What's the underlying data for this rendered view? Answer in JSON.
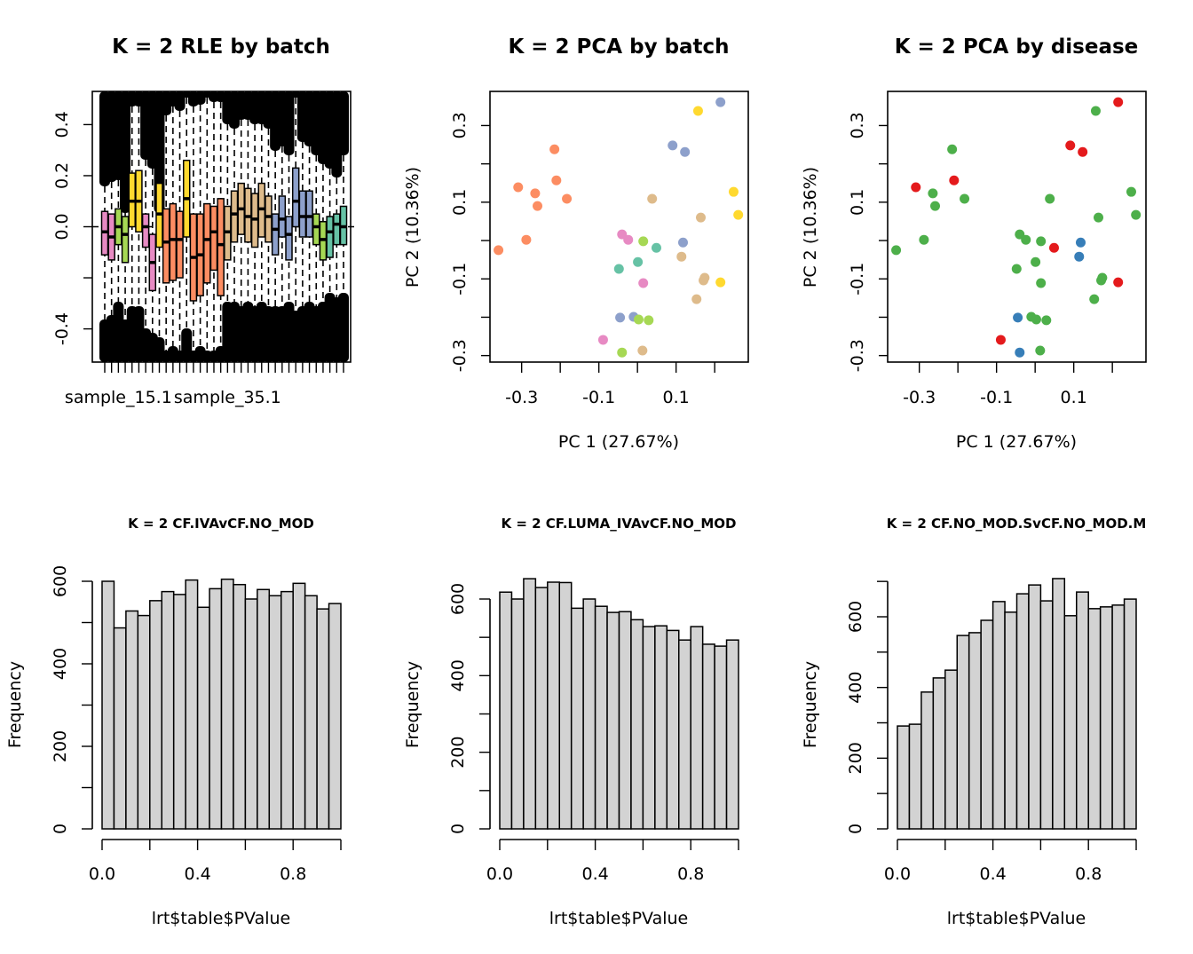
{
  "chart_data": [
    {
      "type": "boxplot",
      "title": "K = 2 RLE by batch",
      "xlabel": "",
      "ylabel": "",
      "ylim": [
        -0.53,
        0.53
      ],
      "yticks": [
        -0.4,
        -0.2,
        0.0,
        0.2,
        0.4
      ],
      "ytick_labels": [
        "-0.4",
        "",
        "0.0",
        "0.2",
        "0.4"
      ],
      "xtick_labels_shown": [
        "sample_15.1",
        "sample_35.1"
      ],
      "reference_line": 0.0,
      "boxes": [
        {
          "color": "#E78AC3",
          "q1": -0.11,
          "median": -0.02,
          "q3": 0.06
        },
        {
          "color": "#E78AC3",
          "q1": -0.13,
          "median": -0.04,
          "q3": 0.05
        },
        {
          "color": "#A6D854",
          "q1": -0.07,
          "median": 0.0,
          "q3": 0.07
        },
        {
          "color": "#A6D854",
          "q1": -0.14,
          "median": -0.03,
          "q3": 0.04
        },
        {
          "color": "#FFD92F",
          "q1": 0.0,
          "median": 0.1,
          "q3": 0.21
        },
        {
          "color": "#FFD92F",
          "q1": -0.02,
          "median": 0.1,
          "q3": 0.22
        },
        {
          "color": "#E78AC3",
          "q1": -0.08,
          "median": 0.0,
          "q3": 0.05
        },
        {
          "color": "#E78AC3",
          "q1": -0.25,
          "median": -0.14,
          "q3": -0.03
        },
        {
          "color": "#FFD92F",
          "q1": -0.08,
          "median": 0.05,
          "q3": 0.17
        },
        {
          "color": "#FC8D62",
          "q1": -0.22,
          "median": -0.06,
          "q3": 0.07
        },
        {
          "color": "#FC8D62",
          "q1": -0.21,
          "median": -0.05,
          "q3": 0.09
        },
        {
          "color": "#FC8D62",
          "q1": -0.2,
          "median": -0.05,
          "q3": 0.06
        },
        {
          "color": "#FFD92F",
          "q1": -0.04,
          "median": 0.11,
          "q3": 0.26
        },
        {
          "color": "#FC8D62",
          "q1": -0.29,
          "median": -0.12,
          "q3": 0.05
        },
        {
          "color": "#FC8D62",
          "q1": -0.27,
          "median": -0.11,
          "q3": 0.05
        },
        {
          "color": "#FC8D62",
          "q1": -0.22,
          "median": -0.05,
          "q3": 0.09
        },
        {
          "color": "#FC8D62",
          "q1": -0.17,
          "median": -0.02,
          "q3": 0.08
        },
        {
          "color": "#FC8D62",
          "q1": -0.27,
          "median": -0.07,
          "q3": 0.11
        },
        {
          "color": "#DEBB8B",
          "q1": -0.13,
          "median": -0.02,
          "q3": 0.08
        },
        {
          "color": "#DEBB8B",
          "q1": -0.06,
          "median": 0.05,
          "q3": 0.14
        },
        {
          "color": "#DEBB8B",
          "q1": -0.03,
          "median": 0.07,
          "q3": 0.17
        },
        {
          "color": "#DEBB8B",
          "q1": -0.06,
          "median": 0.04,
          "q3": 0.15
        },
        {
          "color": "#DEBB8B",
          "q1": -0.08,
          "median": 0.03,
          "q3": 0.13
        },
        {
          "color": "#DEBB8B",
          "q1": -0.04,
          "median": 0.07,
          "q3": 0.17
        },
        {
          "color": "#DEBB8B",
          "q1": -0.06,
          "median": 0.04,
          "q3": 0.12
        },
        {
          "color": "#8DA0CB",
          "q1": -0.11,
          "median": -0.01,
          "q3": 0.05
        },
        {
          "color": "#8DA0CB",
          "q1": -0.04,
          "median": 0.03,
          "q3": 0.12
        },
        {
          "color": "#8DA0CB",
          "q1": -0.13,
          "median": -0.03,
          "q3": 0.04
        },
        {
          "color": "#8DA0CB",
          "q1": 0.0,
          "median": 0.1,
          "q3": 0.23
        },
        {
          "color": "#8DA0CB",
          "q1": -0.04,
          "median": 0.04,
          "q3": 0.14
        },
        {
          "color": "#8DA0CB",
          "q1": -0.04,
          "median": 0.04,
          "q3": 0.14
        },
        {
          "color": "#A6D854",
          "q1": -0.07,
          "median": 0.0,
          "q3": 0.05
        },
        {
          "color": "#A6D854",
          "q1": -0.13,
          "median": -0.05,
          "q3": 0.02
        },
        {
          "color": "#66C2A5",
          "q1": -0.12,
          "median": -0.02,
          "q3": 0.04
        },
        {
          "color": "#66C2A5",
          "q1": -0.07,
          "median": 0.01,
          "q3": 0.05
        },
        {
          "color": "#66C2A5",
          "q1": -0.07,
          "median": 0.0,
          "q3": 0.08
        }
      ]
    },
    {
      "type": "scatter",
      "title": "K = 2 PCA by batch",
      "xlabel": "PC 1 (27.67%)",
      "ylabel": "PC 2 (10.36%)",
      "xlim": [
        -0.382,
        0.287
      ],
      "ylim": [
        -0.317,
        0.389
      ],
      "xticks": [
        -0.3,
        -0.2,
        -0.1,
        0.0,
        0.1,
        0.2
      ],
      "xtick_labels": [
        "-0.3",
        "",
        "-0.1",
        "",
        "0.1",
        ""
      ],
      "yticks": [
        -0.3,
        -0.2,
        -0.1,
        0.0,
        0.1,
        0.2,
        0.3
      ],
      "ytick_labels": [
        "-0.3",
        "",
        "-0.1",
        "",
        "0.1",
        "",
        "0.3"
      ],
      "points": [
        {
          "x": -0.215,
          "y": 0.238,
          "color": "#FC8D62"
        },
        {
          "x": -0.21,
          "y": 0.157,
          "color": "#FC8D62"
        },
        {
          "x": -0.309,
          "y": 0.139,
          "color": "#FC8D62"
        },
        {
          "x": -0.265,
          "y": 0.123,
          "color": "#FC8D62"
        },
        {
          "x": -0.259,
          "y": 0.09,
          "color": "#FC8D62"
        },
        {
          "x": -0.183,
          "y": 0.109,
          "color": "#FC8D62"
        },
        {
          "x": -0.288,
          "y": 0.002,
          "color": "#FC8D62"
        },
        {
          "x": -0.36,
          "y": -0.025,
          "color": "#FC8D62"
        },
        {
          "x": 0.215,
          "y": 0.361,
          "color": "#8DA0CB"
        },
        {
          "x": 0.091,
          "y": 0.248,
          "color": "#8DA0CB"
        },
        {
          "x": 0.123,
          "y": 0.231,
          "color": "#8DA0CB"
        },
        {
          "x": 0.118,
          "y": -0.005,
          "color": "#8DA0CB"
        },
        {
          "x": -0.045,
          "y": -0.201,
          "color": "#8DA0CB"
        },
        {
          "x": -0.01,
          "y": -0.199,
          "color": "#8DA0CB"
        },
        {
          "x": 0.157,
          "y": 0.338,
          "color": "#FFD92F"
        },
        {
          "x": 0.249,
          "y": 0.127,
          "color": "#FFD92F"
        },
        {
          "x": 0.261,
          "y": 0.067,
          "color": "#FFD92F"
        },
        {
          "x": 0.215,
          "y": -0.109,
          "color": "#FFD92F"
        },
        {
          "x": 0.038,
          "y": 0.109,
          "color": "#DEBB8B"
        },
        {
          "x": 0.164,
          "y": 0.06,
          "color": "#DEBB8B"
        },
        {
          "x": 0.114,
          "y": -0.042,
          "color": "#DEBB8B"
        },
        {
          "x": 0.174,
          "y": -0.097,
          "color": "#DEBB8B"
        },
        {
          "x": 0.171,
          "y": -0.104,
          "color": "#DEBB8B"
        },
        {
          "x": 0.153,
          "y": -0.153,
          "color": "#DEBB8B"
        },
        {
          "x": 0.013,
          "y": -0.287,
          "color": "#DEBB8B"
        },
        {
          "x": -0.04,
          "y": 0.016,
          "color": "#E78AC3"
        },
        {
          "x": -0.024,
          "y": 0.002,
          "color": "#E78AC3"
        },
        {
          "x": 0.015,
          "y": -0.111,
          "color": "#E78AC3"
        },
        {
          "x": -0.089,
          "y": -0.259,
          "color": "#E78AC3"
        },
        {
          "x": 0.015,
          "y": -0.002,
          "color": "#A6D854"
        },
        {
          "x": 0.003,
          "y": -0.206,
          "color": "#A6D854"
        },
        {
          "x": 0.029,
          "y": -0.208,
          "color": "#A6D854"
        },
        {
          "x": -0.04,
          "y": -0.292,
          "color": "#A6D854"
        },
        {
          "x": 0.049,
          "y": -0.019,
          "color": "#66C2A5"
        },
        {
          "x": 0.001,
          "y": -0.056,
          "color": "#66C2A5"
        },
        {
          "x": -0.048,
          "y": -0.074,
          "color": "#66C2A5"
        }
      ]
    },
    {
      "type": "scatter",
      "title": "K = 2 PCA by disease",
      "xlabel": "PC 1 (27.67%)",
      "ylabel": "PC 2 (10.36%)",
      "xlim": [
        -0.382,
        0.287
      ],
      "ylim": [
        -0.317,
        0.389
      ],
      "xticks": [
        -0.3,
        -0.2,
        -0.1,
        0.0,
        0.1,
        0.2
      ],
      "xtick_labels": [
        "-0.3",
        "",
        "-0.1",
        "",
        "0.1",
        ""
      ],
      "yticks": [
        -0.3,
        -0.2,
        -0.1,
        0.0,
        0.1,
        0.2,
        0.3
      ],
      "ytick_labels": [
        "-0.3",
        "",
        "-0.1",
        "",
        "0.1",
        "",
        "0.3"
      ],
      "points": [
        {
          "x": -0.215,
          "y": 0.238,
          "color": "#4DAF4A"
        },
        {
          "x": -0.21,
          "y": 0.157,
          "color": "#E41A1C"
        },
        {
          "x": -0.309,
          "y": 0.139,
          "color": "#E41A1C"
        },
        {
          "x": -0.265,
          "y": 0.123,
          "color": "#4DAF4A"
        },
        {
          "x": -0.259,
          "y": 0.09,
          "color": "#4DAF4A"
        },
        {
          "x": -0.183,
          "y": 0.109,
          "color": "#4DAF4A"
        },
        {
          "x": -0.288,
          "y": 0.002,
          "color": "#4DAF4A"
        },
        {
          "x": -0.36,
          "y": -0.025,
          "color": "#4DAF4A"
        },
        {
          "x": 0.215,
          "y": 0.361,
          "color": "#E41A1C"
        },
        {
          "x": 0.091,
          "y": 0.248,
          "color": "#E41A1C"
        },
        {
          "x": 0.123,
          "y": 0.231,
          "color": "#E41A1C"
        },
        {
          "x": 0.118,
          "y": -0.005,
          "color": "#377EB8"
        },
        {
          "x": -0.045,
          "y": -0.201,
          "color": "#377EB8"
        },
        {
          "x": -0.01,
          "y": -0.199,
          "color": "#4DAF4A"
        },
        {
          "x": 0.157,
          "y": 0.338,
          "color": "#4DAF4A"
        },
        {
          "x": 0.249,
          "y": 0.127,
          "color": "#4DAF4A"
        },
        {
          "x": 0.261,
          "y": 0.067,
          "color": "#4DAF4A"
        },
        {
          "x": 0.215,
          "y": -0.109,
          "color": "#E41A1C"
        },
        {
          "x": 0.038,
          "y": 0.109,
          "color": "#4DAF4A"
        },
        {
          "x": 0.164,
          "y": 0.06,
          "color": "#4DAF4A"
        },
        {
          "x": 0.114,
          "y": -0.042,
          "color": "#377EB8"
        },
        {
          "x": 0.174,
          "y": -0.097,
          "color": "#4DAF4A"
        },
        {
          "x": 0.171,
          "y": -0.104,
          "color": "#4DAF4A"
        },
        {
          "x": 0.153,
          "y": -0.153,
          "color": "#4DAF4A"
        },
        {
          "x": 0.013,
          "y": -0.287,
          "color": "#4DAF4A"
        },
        {
          "x": -0.04,
          "y": 0.016,
          "color": "#4DAF4A"
        },
        {
          "x": -0.024,
          "y": 0.002,
          "color": "#4DAF4A"
        },
        {
          "x": 0.015,
          "y": -0.111,
          "color": "#4DAF4A"
        },
        {
          "x": -0.089,
          "y": -0.259,
          "color": "#E41A1C"
        },
        {
          "x": 0.015,
          "y": -0.002,
          "color": "#4DAF4A"
        },
        {
          "x": 0.003,
          "y": -0.206,
          "color": "#4DAF4A"
        },
        {
          "x": 0.029,
          "y": -0.208,
          "color": "#4DAF4A"
        },
        {
          "x": -0.04,
          "y": -0.292,
          "color": "#377EB8"
        },
        {
          "x": 0.049,
          "y": -0.019,
          "color": "#E41A1C"
        },
        {
          "x": 0.001,
          "y": -0.056,
          "color": "#4DAF4A"
        },
        {
          "x": -0.048,
          "y": -0.074,
          "color": "#4DAF4A"
        }
      ]
    },
    {
      "type": "bar",
      "title": "K = 2 CF.IVAvCF.NO_MOD",
      "xlabel": "lrt$table$PValue",
      "ylabel": "Frequency",
      "xlim": [
        0,
        1
      ],
      "ylim": [
        0,
        600
      ],
      "bin_width": 0.05,
      "xticks": [
        0,
        0.2,
        0.4,
        0.6,
        0.8,
        1.0
      ],
      "xtick_labels": [
        "0.0",
        "",
        "0.4",
        "",
        "0.8",
        ""
      ],
      "yticks": [
        0,
        100,
        200,
        300,
        400,
        500,
        600
      ],
      "ytick_labels": [
        "0",
        "",
        "200",
        "",
        "400",
        "",
        "600"
      ],
      "values": [
        600,
        487,
        528,
        517,
        553,
        575,
        568,
        603,
        537,
        582,
        605,
        592,
        557,
        580,
        565,
        575,
        595,
        565,
        533,
        546
      ]
    },
    {
      "type": "bar",
      "title": "K = 2 CF.LUMA_IVAvCF.NO_MOD",
      "xlabel": "lrt$table$PValue",
      "ylabel": "Frequency",
      "xlim": [
        0,
        1
      ],
      "ylim": [
        0,
        600
      ],
      "bin_width": 0.05,
      "xticks": [
        0,
        0.2,
        0.4,
        0.6,
        0.8,
        1.0
      ],
      "xtick_labels": [
        "0.0",
        "",
        "0.4",
        "",
        "0.8",
        ""
      ],
      "yticks": [
        0,
        100,
        200,
        300,
        400,
        500,
        600
      ],
      "ytick_labels": [
        "0",
        "",
        "200",
        "",
        "400",
        "",
        "600"
      ],
      "values": [
        618,
        600,
        653,
        630,
        644,
        643,
        576,
        600,
        581,
        565,
        567,
        546,
        528,
        530,
        518,
        493,
        528,
        482,
        477,
        493
      ]
    },
    {
      "type": "bar",
      "title": "K = 2 CF.NO_MOD.SvCF.NO_MOD.M",
      "xlabel": "lrt$table$PValue",
      "ylabel": "Frequency",
      "xlim": [
        0,
        1
      ],
      "ylim": [
        0,
        700
      ],
      "bin_width": 0.05,
      "xticks": [
        0,
        0.2,
        0.4,
        0.6,
        0.8,
        1.0
      ],
      "xtick_labels": [
        "0.0",
        "",
        "0.4",
        "",
        "0.8",
        ""
      ],
      "yticks": [
        0,
        100,
        200,
        300,
        400,
        500,
        600,
        700
      ],
      "ytick_labels": [
        "0",
        "",
        "200",
        "",
        "400",
        "",
        "600",
        ""
      ],
      "values": [
        291,
        296,
        387,
        427,
        449,
        547,
        555,
        590,
        643,
        613,
        665,
        690,
        645,
        708,
        603,
        670,
        623,
        628,
        633,
        650
      ]
    }
  ]
}
